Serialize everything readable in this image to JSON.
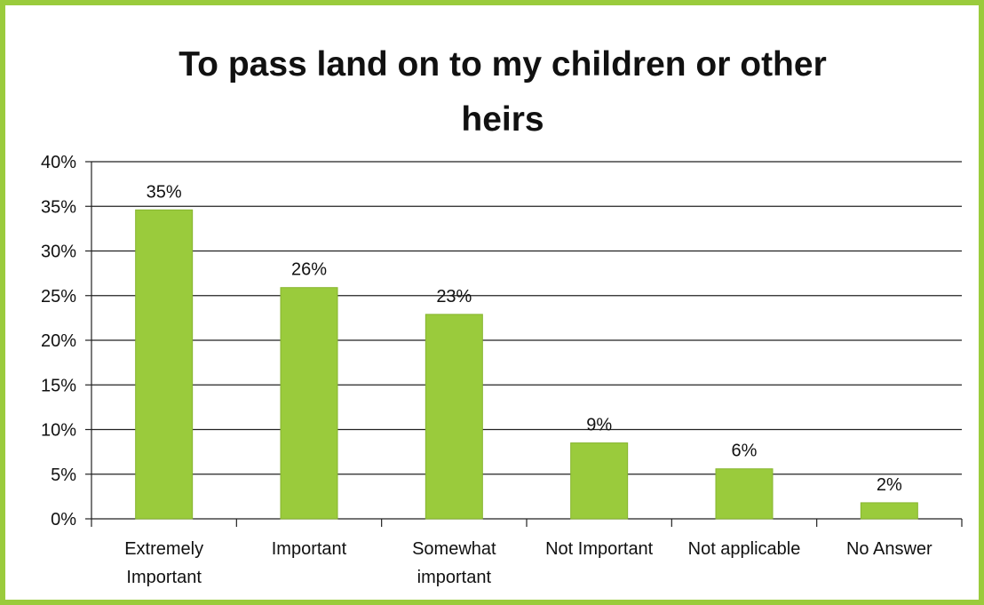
{
  "chart_data": {
    "type": "bar",
    "title": "To pass land on to my children or other heirs",
    "title_lines": [
      "To pass land on to my children or other",
      "heirs"
    ],
    "categories": [
      [
        "Extremely",
        "Important"
      ],
      [
        "Important"
      ],
      [
        "Somewhat",
        "important"
      ],
      [
        "Not Important"
      ],
      [
        "Not applicable"
      ],
      [
        "No Answer"
      ]
    ],
    "values": [
      34.6,
      25.9,
      22.9,
      8.5,
      5.6,
      1.8
    ],
    "data_labels": [
      "35%",
      "26%",
      "23%",
      "9%",
      "6%",
      "2%"
    ],
    "y_ticks": [
      "0%",
      "5%",
      "10%",
      "15%",
      "20%",
      "25%",
      "30%",
      "35%",
      "40%"
    ],
    "ylim": [
      0,
      40
    ],
    "grid": true,
    "legend": "none",
    "bar_color": "#9acb3c",
    "frame_color": "#9acb3c"
  }
}
